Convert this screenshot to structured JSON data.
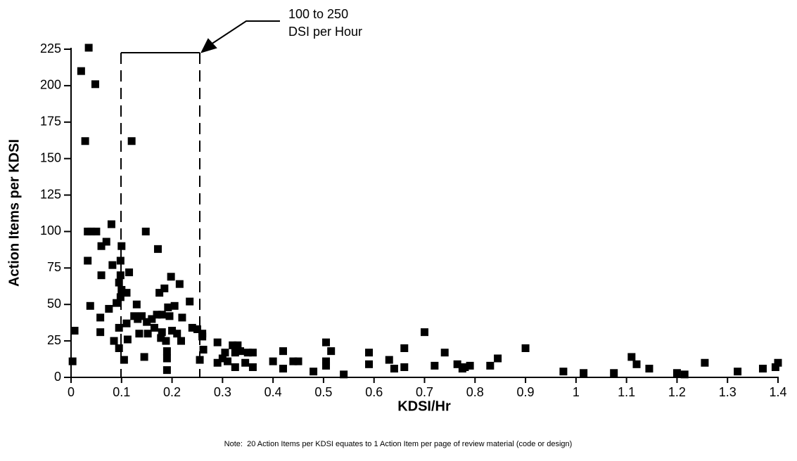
{
  "chart_data": {
    "type": "scatter",
    "xlabel": "KDSI/Hr",
    "ylabel": "Action Items per KDSI",
    "annotation": [
      "100 to 250",
      "DSI per Hour"
    ],
    "note": "Note:  20 Action Items per KDSI equates to 1 Action Item per page of review material (code or design)",
    "color": "#000000",
    "marker": "square",
    "xlim": [
      0,
      1.4
    ],
    "ylim": [
      0,
      225
    ],
    "xticks": [
      0,
      0.1,
      0.2,
      0.3,
      0.4,
      0.5,
      0.6,
      0.7,
      0.8,
      0.9,
      1,
      1.1,
      1.2,
      1.3,
      1.4
    ],
    "yticks": [
      0,
      25,
      50,
      75,
      100,
      125,
      150,
      175,
      200,
      225
    ],
    "x": [
      0.003,
      0.007,
      0.02,
      0.028,
      0.035,
      0.048,
      0.033,
      0.04,
      0.05,
      0.033,
      0.038,
      0.06,
      0.06,
      0.058,
      0.058,
      0.07,
      0.075,
      0.082,
      0.08,
      0.085,
      0.09,
      0.095,
      0.095,
      0.095,
      0.098,
      0.1,
      0.098,
      0.098,
      0.1,
      0.105,
      0.11,
      0.11,
      0.112,
      0.115,
      0.12,
      0.125,
      0.13,
      0.132,
      0.135,
      0.14,
      0.145,
      0.148,
      0.15,
      0.152,
      0.16,
      0.165,
      0.17,
      0.172,
      0.175,
      0.178,
      0.18,
      0.18,
      0.185,
      0.188,
      0.19,
      0.19,
      0.19,
      0.192,
      0.195,
      0.198,
      0.2,
      0.205,
      0.21,
      0.215,
      0.218,
      0.22,
      0.235,
      0.24,
      0.25,
      0.255,
      0.26,
      0.262,
      0.26,
      0.29,
      0.29,
      0.3,
      0.305,
      0.31,
      0.32,
      0.325,
      0.325,
      0.33,
      0.335,
      0.345,
      0.35,
      0.36,
      0.36,
      0.4,
      0.42,
      0.42,
      0.44,
      0.45,
      0.48,
      0.505,
      0.505,
      0.505,
      0.515,
      0.54,
      0.59,
      0.59,
      0.63,
      0.64,
      0.66,
      0.66,
      0.7,
      0.72,
      0.74,
      0.765,
      0.775,
      0.78,
      0.79,
      0.83,
      0.845,
      0.9,
      0.975,
      1.015,
      1.075,
      1.11,
      1.12,
      1.145,
      1.2,
      1.215,
      1.255,
      1.32,
      1.37,
      1.395,
      1.4
    ],
    "values": [
      11,
      32,
      210,
      162,
      226,
      201,
      100,
      100,
      100,
      80,
      49,
      90,
      70,
      41,
      31,
      93,
      47,
      77,
      105,
      25,
      51,
      20,
      34,
      65,
      55,
      60,
      80,
      70,
      90,
      12,
      37,
      58,
      26,
      72,
      162,
      42,
      50,
      40,
      30,
      42,
      14,
      100,
      38,
      30,
      40,
      34,
      43,
      88,
      58,
      27,
      31,
      43,
      61,
      25,
      18,
      13,
      5,
      48,
      42,
      69,
      32,
      49,
      30,
      64,
      25,
      41,
      52,
      34,
      33,
      12,
      28,
      19,
      30,
      24,
      10,
      13,
      17,
      11,
      22,
      17,
      7,
      22,
      18,
      10,
      17,
      7,
      17,
      11,
      18,
      6,
      11,
      11,
      4,
      24,
      11,
      8,
      18,
      2,
      17,
      9,
      12,
      6,
      20,
      7,
      31,
      8,
      17,
      9,
      6,
      7,
      8,
      8,
      13,
      20,
      4,
      3,
      3,
      14,
      9,
      6,
      3,
      2,
      10,
      4,
      6,
      7,
      10
    ]
  }
}
